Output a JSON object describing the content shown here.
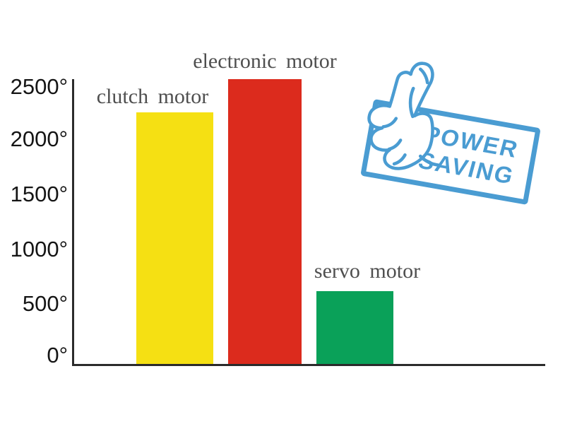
{
  "chart_data": {
    "type": "bar",
    "title": "",
    "xlabel": "",
    "ylabel": "",
    "categories": [
      "clutch motor",
      "electronic motor",
      "servo motor"
    ],
    "values": [
      2250,
      2550,
      650
    ],
    "value_unit": "degrees",
    "colors": [
      "#f5e013",
      "#dc2b1d",
      "#0aa159"
    ],
    "y_ticks": [
      0,
      500,
      1000,
      1500,
      2000,
      2500
    ],
    "y_tick_labels": [
      "2500°",
      "2000°",
      "1500°",
      "1000°",
      "500°",
      "0°"
    ],
    "ylim": [
      0,
      2700
    ],
    "grid": false,
    "legend": "none",
    "pixels_per_unit": 0.158
  },
  "badge": {
    "line1": "POWER",
    "line2": "SAVING",
    "color": "#4a9cd2",
    "icon": "thumbs-up"
  }
}
